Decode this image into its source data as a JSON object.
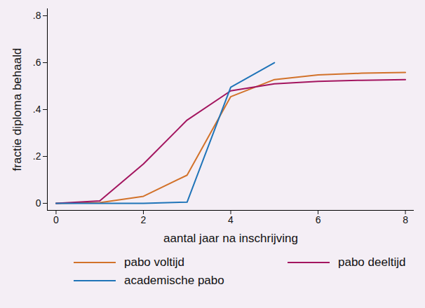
{
  "chart_data": {
    "type": "line",
    "xlabel": "aantal jaar na inschrijving",
    "ylabel": "fractie diploma behaald",
    "x": [
      0,
      1,
      2,
      3,
      4,
      5,
      6,
      7,
      8
    ],
    "series": [
      {
        "name": "pabo voltijd",
        "color": "#d2722a",
        "values": [
          0,
          0.003,
          0.03,
          0.12,
          0.455,
          0.528,
          0.548,
          0.555,
          0.558
        ]
      },
      {
        "name": "pabo deeltijd",
        "color": "#a3155f",
        "values": [
          0,
          0.01,
          0.168,
          0.355,
          0.48,
          0.51,
          0.52,
          0.525,
          0.528
        ]
      },
      {
        "name": "academische pabo",
        "color": "#1f74b8",
        "values": [
          0,
          0,
          0,
          0.005,
          0.495,
          0.6,
          null,
          null,
          null
        ]
      }
    ],
    "xlim": [
      -0.2,
      8.2
    ],
    "ylim": [
      -0.03,
      0.83
    ],
    "xticks": [
      0,
      2,
      4,
      6,
      8
    ],
    "yticks": [
      0,
      {
        "value": 0.2,
        "label": ".2"
      },
      {
        "value": 0.4,
        "label": ".4"
      },
      {
        "value": 0.6,
        "label": ".6"
      },
      {
        "value": 0.8,
        "label": ".8"
      }
    ],
    "grid": false,
    "legend": "bottom"
  }
}
